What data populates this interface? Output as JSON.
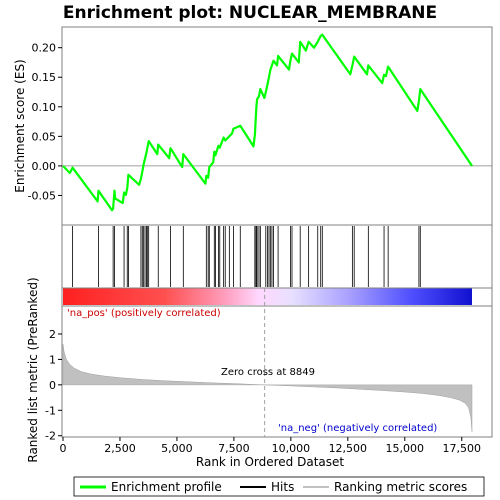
{
  "chart_data": {
    "type": "line",
    "title": "Enrichment plot: NUCLEAR_MEMBRANE",
    "top_panel": {
      "ylabel": "Enrichment score (ES)",
      "ylim": [
        -0.1,
        0.235
      ],
      "yticks": [
        -0.05,
        0.0,
        0.05,
        0.1,
        0.15,
        0.2
      ],
      "ytick_labels": [
        "-0.05",
        "0.00",
        "0.05",
        "0.10",
        "0.15",
        "0.20"
      ],
      "series": [
        {
          "name": "Enrichment profile",
          "color": "#00ff00",
          "x": [
            0,
            300,
            420,
            1520,
            1560,
            2150,
            2200,
            2260,
            2290,
            2620,
            2680,
            2760,
            2820,
            2870,
            3340,
            3420,
            3480,
            3540,
            3600,
            3660,
            3700,
            3760,
            4140,
            4180,
            4660,
            4720,
            5230,
            5280,
            6250,
            6290,
            6370,
            6420,
            6590,
            6640,
            6690,
            6820,
            6880,
            7050,
            7120,
            7300,
            7420,
            7480,
            7780,
            8360,
            8420,
            8470,
            8490,
            8520,
            8600,
            8660,
            8840,
            8900,
            8970,
            9040,
            9100,
            9170,
            9240,
            9390,
            9440,
            9920,
            9980,
            10050,
            10350,
            10410,
            10660,
            10780,
            11020,
            11180,
            11310,
            11380,
            12610,
            12700,
            12780,
            13340,
            13400,
            14010,
            14090,
            14170,
            14270,
            15550,
            15620,
            15680,
            17950
          ],
          "y": [
            0.0,
            -0.012,
            -0.003,
            -0.06,
            -0.042,
            -0.075,
            -0.072,
            -0.042,
            -0.055,
            -0.063,
            -0.045,
            -0.049,
            -0.037,
            -0.015,
            -0.032,
            -0.022,
            -0.01,
            0.003,
            0.012,
            0.022,
            0.03,
            0.042,
            0.02,
            0.036,
            0.013,
            0.03,
            -0.002,
            0.02,
            -0.03,
            -0.017,
            -0.02,
            -0.002,
            0.006,
            0.024,
            0.018,
            0.034,
            0.031,
            0.048,
            0.043,
            0.05,
            0.055,
            0.063,
            0.068,
            0.033,
            0.053,
            0.088,
            0.1,
            0.113,
            0.118,
            0.13,
            0.115,
            0.125,
            0.137,
            0.15,
            0.162,
            0.17,
            0.178,
            0.17,
            0.186,
            0.163,
            0.178,
            0.19,
            0.175,
            0.21,
            0.195,
            0.21,
            0.2,
            0.21,
            0.22,
            0.222,
            0.155,
            0.17,
            0.185,
            0.155,
            0.17,
            0.14,
            0.154,
            0.152,
            0.168,
            0.093,
            0.11,
            0.13,
            0.0
          ]
        }
      ],
      "hits_label": "Hits",
      "hits_color": "#000000",
      "hit_positions": [
        420,
        1560,
        2200,
        2260,
        2680,
        2820,
        2870,
        3420,
        3480,
        3540,
        3600,
        3660,
        3700,
        3760,
        4180,
        4720,
        5280,
        6290,
        6370,
        6420,
        6640,
        6690,
        6820,
        6880,
        7050,
        7120,
        7300,
        7480,
        7780,
        8420,
        8470,
        8490,
        8520,
        8600,
        8660,
        8900,
        8970,
        9040,
        9100,
        9170,
        9240,
        9440,
        9980,
        10050,
        10410,
        10780,
        11180,
        11310,
        11380,
        12700,
        12780,
        13400,
        14090,
        14270,
        15620,
        15680
      ]
    },
    "bottom_panel": {
      "ylabel": "Ranked list metric (PreRanked)",
      "xlabel": "Rank in Ordered Dataset",
      "ylim": [
        -2.05,
        3.1
      ],
      "yticks": [
        -2,
        -1,
        0,
        1,
        2
      ],
      "ytick_labels": [
        "-2",
        "-1",
        "0",
        "1",
        "2"
      ],
      "series_name": "Ranking metric scores",
      "series_color": "#c0c0c0",
      "metric_curve": {
        "x": [
          0,
          50,
          150,
          300,
          500,
          800,
          1200,
          1800,
          2500,
          3500,
          4500,
          5500,
          6500,
          7500,
          8849,
          10000,
          11000,
          12000,
          13000,
          14000,
          15000,
          15800,
          16500,
          17000,
          17400,
          17650,
          17800,
          17900,
          17950
        ],
        "y": [
          1.6,
          1.3,
          1.0,
          0.8,
          0.65,
          0.52,
          0.43,
          0.35,
          0.28,
          0.21,
          0.16,
          0.12,
          0.08,
          0.05,
          0.0,
          -0.04,
          -0.08,
          -0.12,
          -0.17,
          -0.22,
          -0.28,
          -0.34,
          -0.42,
          -0.5,
          -0.6,
          -0.72,
          -0.9,
          -1.3,
          -1.85
        ]
      },
      "zero_cross_label": "Zero cross at 8849",
      "zero_cross": 8849,
      "pos_label": "'na_pos' (positively correlated)",
      "neg_label": "'na_neg' (negatively correlated)",
      "pos_color": "#ff0000",
      "neg_color": "#0000ff"
    },
    "xlim": [
      0,
      18900
    ],
    "xticks": [
      0,
      2500,
      5000,
      7500,
      10000,
      12500,
      15000,
      17500
    ],
    "xtick_labels": [
      "0",
      "2,500",
      "5,000",
      "7,500",
      "10,000",
      "12,500",
      "15,000",
      "17,500"
    ],
    "legend": {
      "placement": "bottom",
      "items": [
        "Enrichment profile",
        "Hits",
        "Ranking metric scores"
      ]
    }
  }
}
